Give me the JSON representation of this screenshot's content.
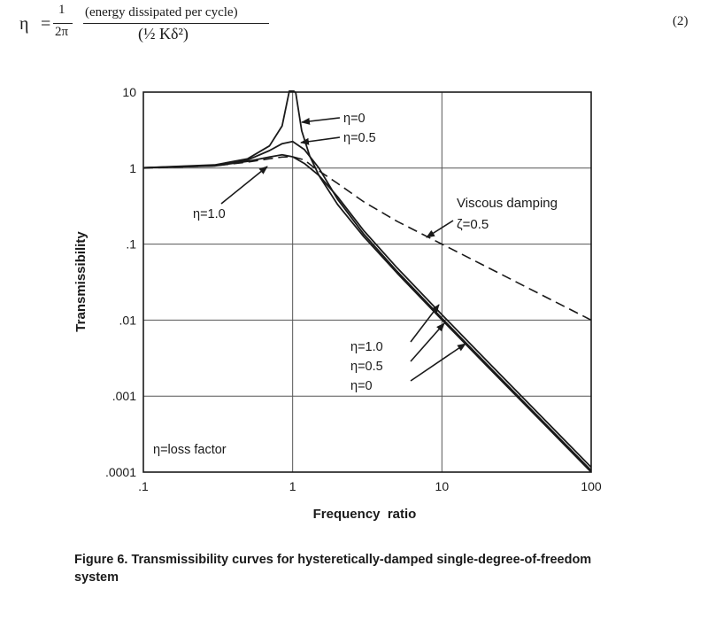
{
  "equation": {
    "lhs": "η",
    "equals": "=",
    "coef_num": "1",
    "coef_den": "2π",
    "numerator": "(energy dissipated per cycle)",
    "denominator": "(½ Kδ²)",
    "number": "(2)"
  },
  "chart_data": {
    "type": "line",
    "title": "",
    "xlabel": "Frequency  ratio",
    "ylabel": "Transmissibility",
    "xscale": "log",
    "yscale": "log",
    "xlim": [
      0.1,
      100
    ],
    "ylim": [
      0.0001,
      10
    ],
    "xticks": [
      0.1,
      1,
      10,
      100
    ],
    "xtick_labels": [
      ".1",
      "1",
      "10",
      "100"
    ],
    "yticks": [
      10,
      1,
      0.1,
      0.01,
      0.001,
      0.0001
    ],
    "ytick_labels": [
      "10",
      "1",
      ".1",
      ".01",
      ".001",
      ".0001"
    ],
    "grid": true,
    "series": [
      {
        "name": "η=0",
        "style": "solid",
        "x": [
          0.1,
          0.3,
          0.5,
          0.7,
          0.85,
          0.95,
          0.98,
          1.02,
          1.05,
          1.15,
          1.3,
          1.5,
          2,
          3,
          5,
          10,
          20,
          50,
          100
        ],
        "y": [
          1.01,
          1.1,
          1.33,
          1.96,
          3.6,
          10.3,
          10.3,
          10.3,
          9.76,
          3.1,
          1.45,
          0.8,
          0.333,
          0.125,
          0.0417,
          0.0101,
          0.0025,
          0.0004,
          0.0001
        ]
      },
      {
        "name": "η=0.5",
        "style": "solid",
        "x": [
          0.1,
          0.3,
          0.5,
          0.7,
          0.85,
          1,
          1.2,
          1.5,
          2,
          3,
          5,
          10,
          20,
          50,
          100
        ],
        "y": [
          1.01,
          1.09,
          1.28,
          1.7,
          2.1,
          2.24,
          1.75,
          1.0,
          0.39,
          0.135,
          0.0439,
          0.0106,
          0.00262,
          0.00042,
          0.000105
        ]
      },
      {
        "name": "η=1.0",
        "style": "solid",
        "x": [
          0.1,
          0.3,
          0.5,
          0.7,
          0.85,
          1,
          1.2,
          1.5,
          2,
          3,
          5,
          10,
          20,
          50,
          100
        ],
        "y": [
          1.01,
          1.07,
          1.23,
          1.4,
          1.5,
          1.41,
          1.15,
          0.8,
          0.42,
          0.15,
          0.0489,
          0.0118,
          0.00291,
          0.000464,
          0.000116
        ]
      },
      {
        "name": "Viscous damping ζ=0.5",
        "style": "dashed",
        "x": [
          0.1,
          0.3,
          0.5,
          0.7,
          0.85,
          1,
          1.2,
          1.41,
          2,
          3,
          5,
          10,
          20,
          50,
          100
        ],
        "y": [
          1.0,
          1.07,
          1.2,
          1.33,
          1.4,
          1.41,
          1.28,
          1.0,
          0.63,
          0.36,
          0.2,
          0.1,
          0.05,
          0.02,
          0.01
        ]
      }
    ],
    "annotations": [
      {
        "text": "η=0"
      },
      {
        "text": "η=0.5"
      },
      {
        "text": "η=1.0"
      },
      {
        "text": "Viscous damping"
      },
      {
        "text": "ζ=0.5"
      },
      {
        "text": "η=1.0"
      },
      {
        "text": "η=0.5"
      },
      {
        "text": "η=0"
      },
      {
        "text": "η=loss factor"
      }
    ]
  },
  "caption": "Figure 6. Transmissibility curves for hysteretically-damped single-degree-of-freedom system"
}
